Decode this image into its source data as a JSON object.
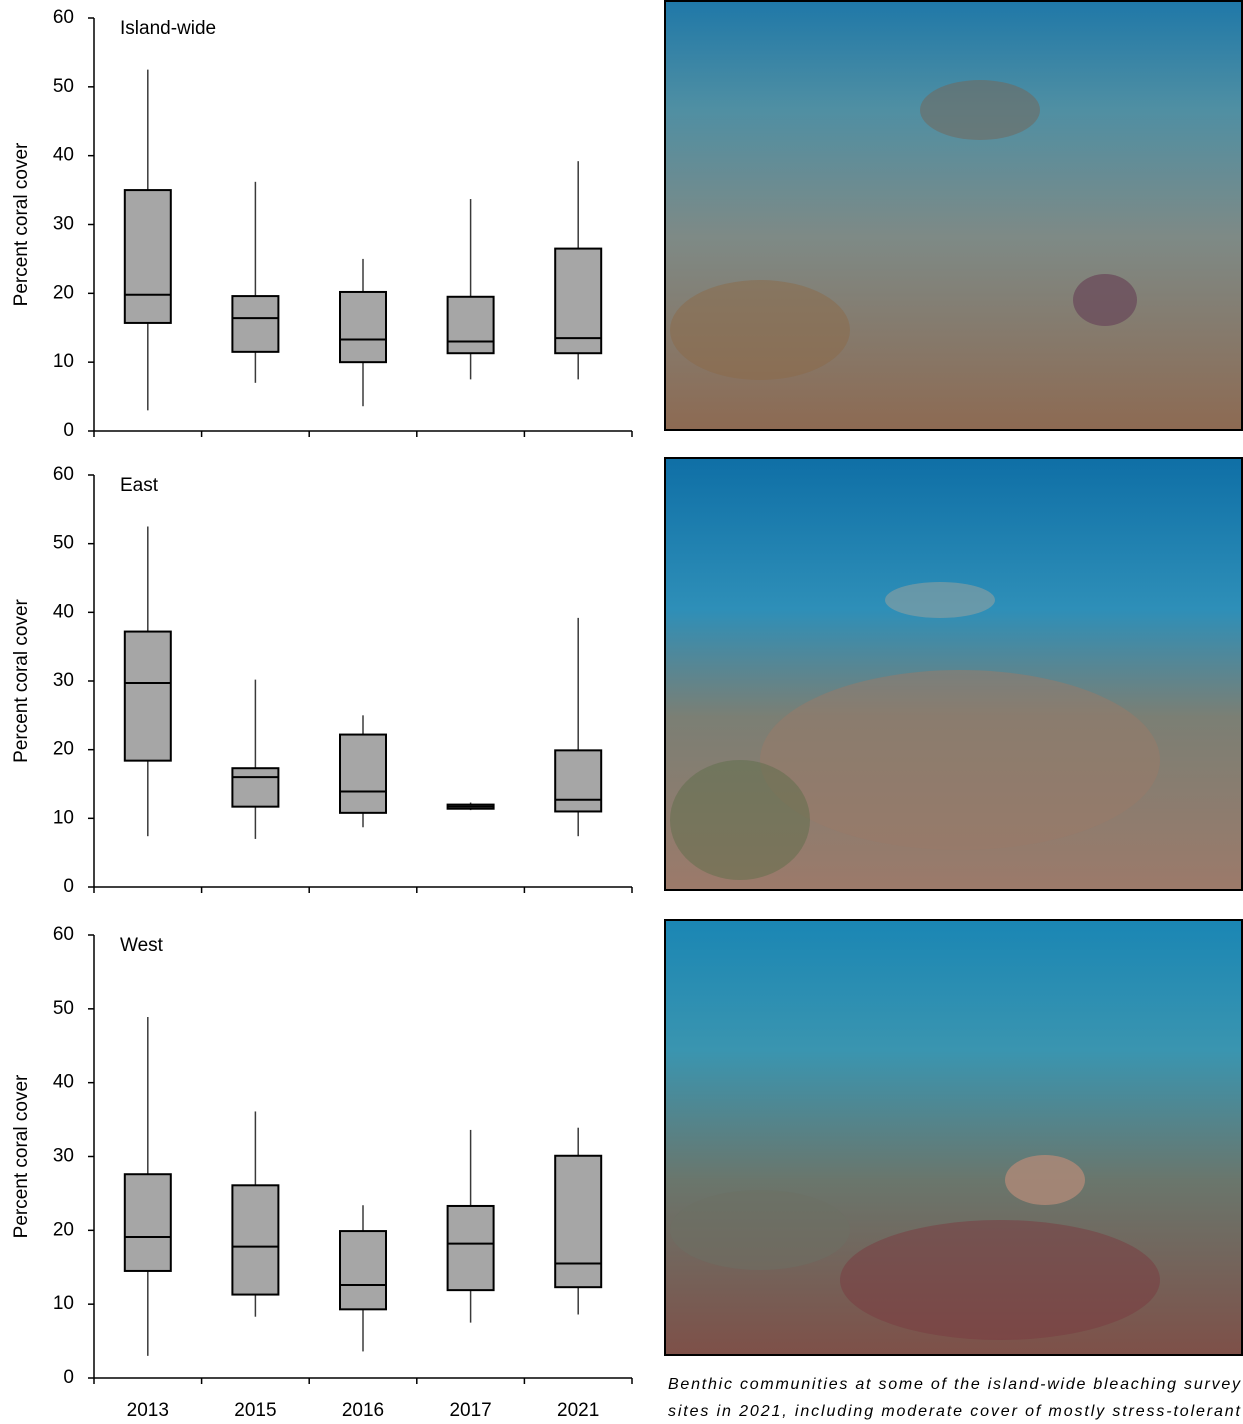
{
  "chart_data": [
    {
      "type": "box",
      "title": "Island-wide",
      "ylabel": "Percent coral cover",
      "categories": [
        null,
        null,
        null,
        null,
        null
      ],
      "color": "#a6a6a6",
      "min": [
        3,
        7,
        3.6,
        7.5,
        7.5
      ],
      "q1": [
        15.7,
        11.5,
        10,
        11.3,
        11.3
      ],
      "median": [
        19.8,
        16.4,
        13.3,
        13,
        13.5
      ],
      "q3": [
        35,
        19.6,
        20.2,
        19.5,
        26.5
      ],
      "max": [
        52.5,
        36.2,
        25,
        33.7,
        39.2
      ],
      "ylim": [
        0,
        60
      ],
      "yticks": [
        0,
        10,
        20,
        30,
        40,
        50,
        60
      ]
    },
    {
      "type": "box",
      "title": "East",
      "ylabel": "Percent coral cover",
      "categories": [
        null,
        null,
        null,
        null,
        null
      ],
      "color": "#a6a6a6",
      "min": [
        7.4,
        7,
        8.7,
        11.2,
        7.4
      ],
      "q1": [
        18.4,
        11.7,
        10.8,
        11.4,
        11
      ],
      "median": [
        29.7,
        16,
        13.9,
        11.7,
        12.7
      ],
      "q3": [
        37.2,
        17.3,
        22.2,
        12,
        19.9
      ],
      "max": [
        52.5,
        30.2,
        25,
        12.3,
        39.2
      ],
      "ylim": [
        0,
        60
      ],
      "yticks": [
        0,
        10,
        20,
        30,
        40,
        50,
        60
      ]
    },
    {
      "type": "box",
      "title": "West",
      "ylabel": "Percent coral cover",
      "categories": [
        "2013",
        "2015",
        "2016",
        "2017",
        "2021"
      ],
      "color": "#a6a6a6",
      "min": [
        3,
        8.3,
        3.6,
        7.5,
        8.6
      ],
      "q1": [
        14.5,
        11.3,
        9.3,
        11.9,
        12.3
      ],
      "median": [
        19.1,
        17.8,
        12.6,
        18.2,
        15.5
      ],
      "q3": [
        27.6,
        26.1,
        19.9,
        23.3,
        30.1
      ],
      "max": [
        48.9,
        36.1,
        23.4,
        33.6,
        33.9
      ],
      "ylim": [
        0,
        60
      ],
      "yticks": [
        0,
        10,
        20,
        30,
        40,
        50,
        60
      ]
    }
  ],
  "caption": [
    "Benthic communities at some of the island-wide bleaching survey",
    "sites in 2021, including moderate cover of mostly stress-tolerant"
  ]
}
